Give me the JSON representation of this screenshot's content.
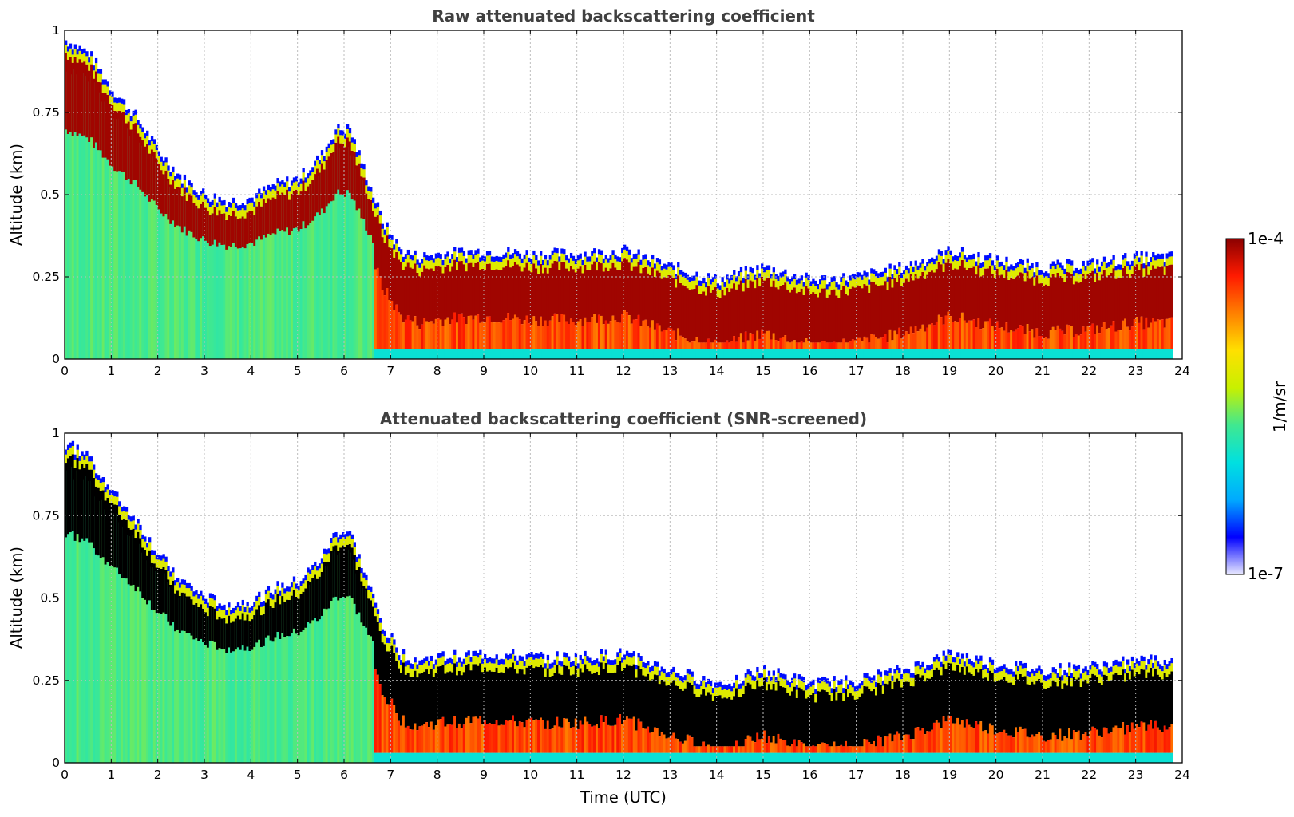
{
  "chart_data": [
    {
      "type": "heatmap",
      "title": "Raw attenuated backscattering coefficient",
      "xlabel": "",
      "ylabel": "Altitude (km)",
      "xlim": [
        0,
        24
      ],
      "ylim": [
        0,
        1
      ],
      "x_ticks": [
        "0",
        "1",
        "2",
        "3",
        "4",
        "5",
        "6",
        "7",
        "8",
        "9",
        "10",
        "11",
        "12",
        "13",
        "14",
        "15",
        "16",
        "17",
        "18",
        "19",
        "20",
        "21",
        "22",
        "23",
        "24"
      ],
      "y_ticks": [
        "0",
        "0.25",
        "0.5",
        "0.75",
        "1"
      ],
      "grid": true,
      "screened": false,
      "layer_top_km": [
        [
          0,
          0.97
        ],
        [
          0.5,
          0.93
        ],
        [
          1,
          0.82
        ],
        [
          1.5,
          0.74
        ],
        [
          2,
          0.63
        ],
        [
          2.5,
          0.55
        ],
        [
          3,
          0.5
        ],
        [
          3.5,
          0.48
        ],
        [
          4,
          0.49
        ],
        [
          4.5,
          0.53
        ],
        [
          5,
          0.55
        ],
        [
          5.5,
          0.62
        ],
        [
          5.8,
          0.7
        ],
        [
          6.1,
          0.7
        ],
        [
          6.4,
          0.58
        ],
        [
          6.8,
          0.42
        ],
        [
          7.2,
          0.33
        ],
        [
          7.6,
          0.31
        ],
        [
          8,
          0.32
        ],
        [
          9,
          0.33
        ],
        [
          10,
          0.32
        ],
        [
          11,
          0.32
        ],
        [
          12,
          0.33
        ],
        [
          13,
          0.28
        ],
        [
          14,
          0.24
        ],
        [
          15,
          0.28
        ],
        [
          16,
          0.24
        ],
        [
          17,
          0.25
        ],
        [
          18,
          0.28
        ],
        [
          19,
          0.33
        ],
        [
          20,
          0.3
        ],
        [
          21,
          0.28
        ],
        [
          22,
          0.29
        ],
        [
          23,
          0.31
        ],
        [
          23.8,
          0.31
        ]
      ]
    },
    {
      "type": "heatmap",
      "title": "Attenuated backscattering coefficient (SNR-screened)",
      "xlabel": "Time (UTC)",
      "ylabel": "Altitude (km)",
      "xlim": [
        0,
        24
      ],
      "ylim": [
        0,
        1
      ],
      "x_ticks": [
        "0",
        "1",
        "2",
        "3",
        "4",
        "5",
        "6",
        "7",
        "8",
        "9",
        "10",
        "11",
        "12",
        "13",
        "14",
        "15",
        "16",
        "17",
        "18",
        "19",
        "20",
        "21",
        "22",
        "23",
        "24"
      ],
      "y_ticks": [
        "0",
        "0.25",
        "0.5",
        "0.75",
        "1"
      ],
      "grid": true,
      "screened": true,
      "layer_top_km": [
        [
          0,
          0.97
        ],
        [
          0.5,
          0.93
        ],
        [
          1,
          0.82
        ],
        [
          1.5,
          0.74
        ],
        [
          2,
          0.63
        ],
        [
          2.5,
          0.55
        ],
        [
          3,
          0.5
        ],
        [
          3.5,
          0.48
        ],
        [
          4,
          0.49
        ],
        [
          4.5,
          0.53
        ],
        [
          5,
          0.55
        ],
        [
          5.5,
          0.62
        ],
        [
          5.8,
          0.7
        ],
        [
          6.1,
          0.7
        ],
        [
          6.4,
          0.58
        ],
        [
          6.8,
          0.42
        ],
        [
          7.2,
          0.33
        ],
        [
          7.6,
          0.31
        ],
        [
          8,
          0.32
        ],
        [
          9,
          0.33
        ],
        [
          10,
          0.32
        ],
        [
          11,
          0.32
        ],
        [
          12,
          0.33
        ],
        [
          13,
          0.28
        ],
        [
          14,
          0.24
        ],
        [
          15,
          0.28
        ],
        [
          16,
          0.24
        ],
        [
          17,
          0.25
        ],
        [
          18,
          0.28
        ],
        [
          19,
          0.33
        ],
        [
          20,
          0.3
        ],
        [
          21,
          0.28
        ],
        [
          22,
          0.29
        ],
        [
          23,
          0.31
        ],
        [
          23.8,
          0.31
        ]
      ]
    }
  ],
  "colorbar": {
    "max_label": "1e-4",
    "min_label": "1e-7",
    "label": "1/m/sr",
    "colormap": [
      "#e8e8ff",
      "#0000ff",
      "#00aaff",
      "#00e0e0",
      "#40e890",
      "#c8f000",
      "#ffe000",
      "#ff8000",
      "#ff1a00",
      "#8b0000"
    ]
  }
}
